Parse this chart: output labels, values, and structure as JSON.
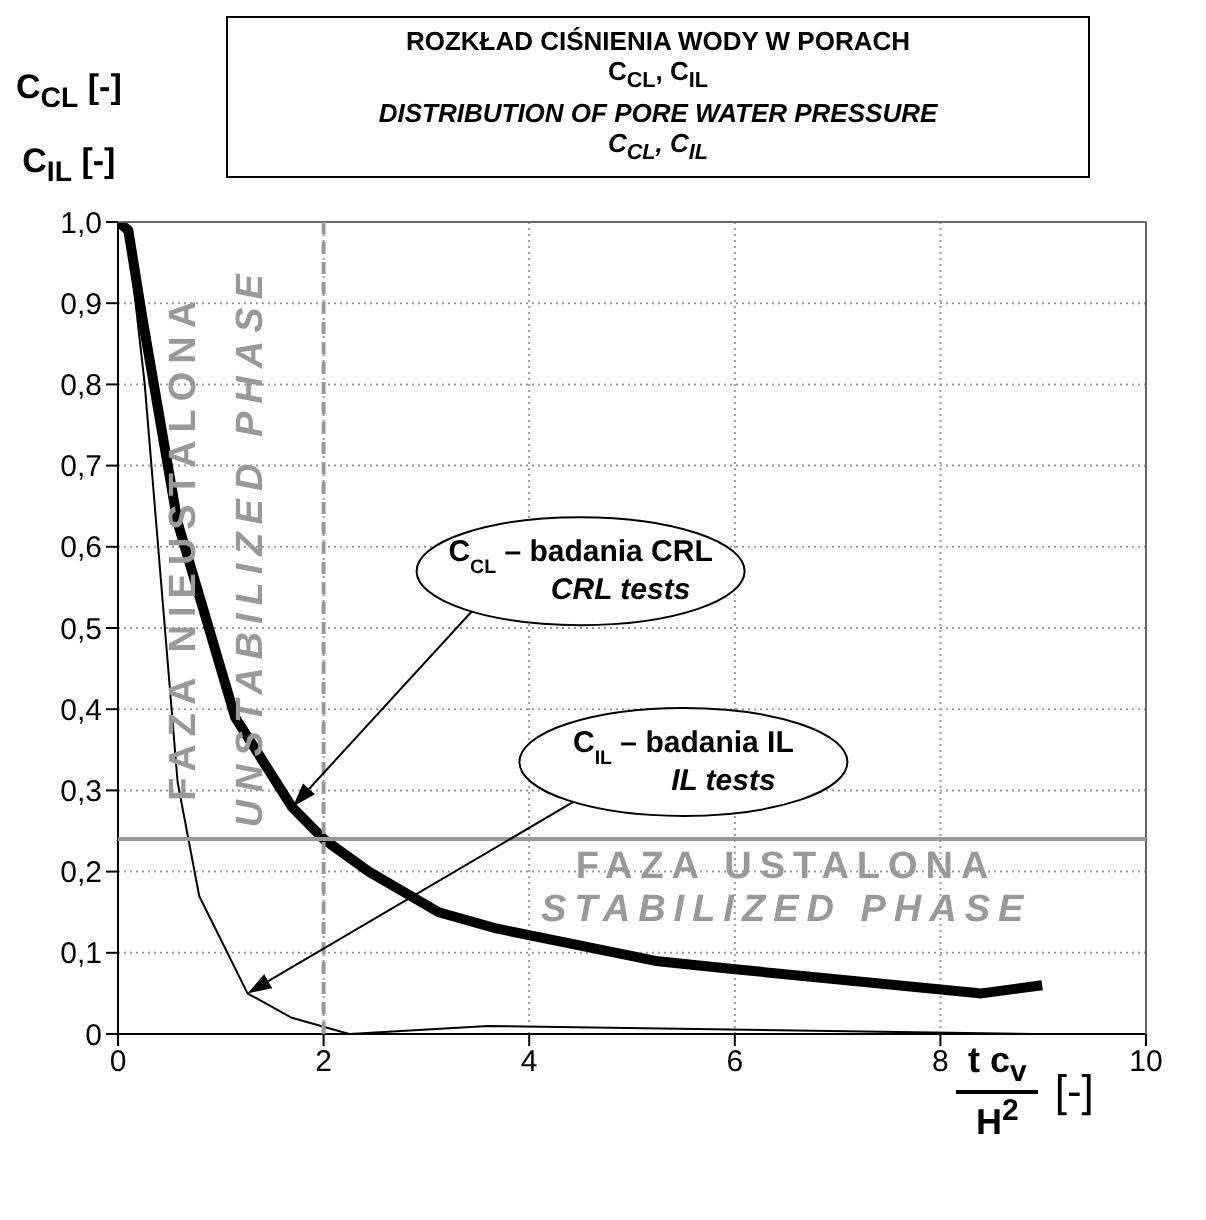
{
  "chart_data": {
    "type": "line",
    "title": "ROZKŁAD CIŚNIENIA  WODY W PORACH\nC$_{CL}$, C$_{IL}$",
    "subtitle": "DISTRIBUTION OF PORE WATER PRESSURE\nC$_{CL}$, C$_{IL}$",
    "ylabel": "C$_{CL}$ [-]\nC$_{IL}$ [-]",
    "xlabel": "t c$_{v}$\nH$^{2}$\n[-]",
    "series": [
      {
        "color": "#000000",
        "x": [
          0,
          0.1,
          0.24,
          0.58,
          1.14,
          1.69,
          2.0,
          2.44,
          3.12,
          3.68,
          5.23,
          5.98,
          8.4,
          8.99
        ],
        "values": [
          1.0,
          0.99,
          0.88,
          0.63,
          0.39,
          0.28,
          0.24,
          0.2,
          0.15,
          0.13,
          0.09,
          0.08,
          0.05,
          0.06
        ]
      },
      {
        "color": "#000000",
        "x": [
          0,
          0.1,
          0.26,
          0.58,
          0.79,
          1.26,
          1.69,
          2.25,
          3.6,
          8.9
        ],
        "values": [
          1.0,
          0.98,
          0.8,
          0.31,
          0.17,
          0.05,
          0.02,
          0.0,
          0.01,
          0.0
        ]
      }
    ],
    "xlim": [
      0,
      10
    ],
    "xticks": [
      0,
      2,
      4,
      6,
      8,
      10
    ],
    "ylim": [
      0,
      1.0
    ],
    "yticks": [
      {
        "value": 0,
        "label": "0"
      },
      {
        "value": 0.1,
        "label": "0,1"
      },
      {
        "value": 0.2,
        "label": "0,2"
      },
      {
        "value": 0.3,
        "label": "0,3"
      },
      {
        "value": 0.4,
        "label": "0,4"
      },
      {
        "value": 0.5,
        "label": "0,5"
      },
      {
        "value": 0.6,
        "label": "0,6"
      },
      {
        "value": 0.7,
        "label": "0,7"
      },
      {
        "value": 0.8,
        "label": "0,8"
      },
      {
        "value": 0.9,
        "label": "0,9"
      },
      {
        "value": 1.0,
        "label": "1,0"
      }
    ],
    "grid": true,
    "ref_lines": [
      {
        "axis": "x",
        "value": 2,
        "color": "#999999",
        "line_style": "dashed"
      },
      {
        "axis": "y",
        "value": 0.24,
        "color": "#999999"
      }
    ],
    "annotations": [
      "FAZA NIEUSTALONA",
      "UNSTABILIZED PHASE",
      "FAZA USTALONA",
      "STABILIZED PHASE",
      "C$_{CL}$ – badania CRL\nCRL tests",
      "C$_{IL}$ – badania IL\nIL tests"
    ]
  }
}
